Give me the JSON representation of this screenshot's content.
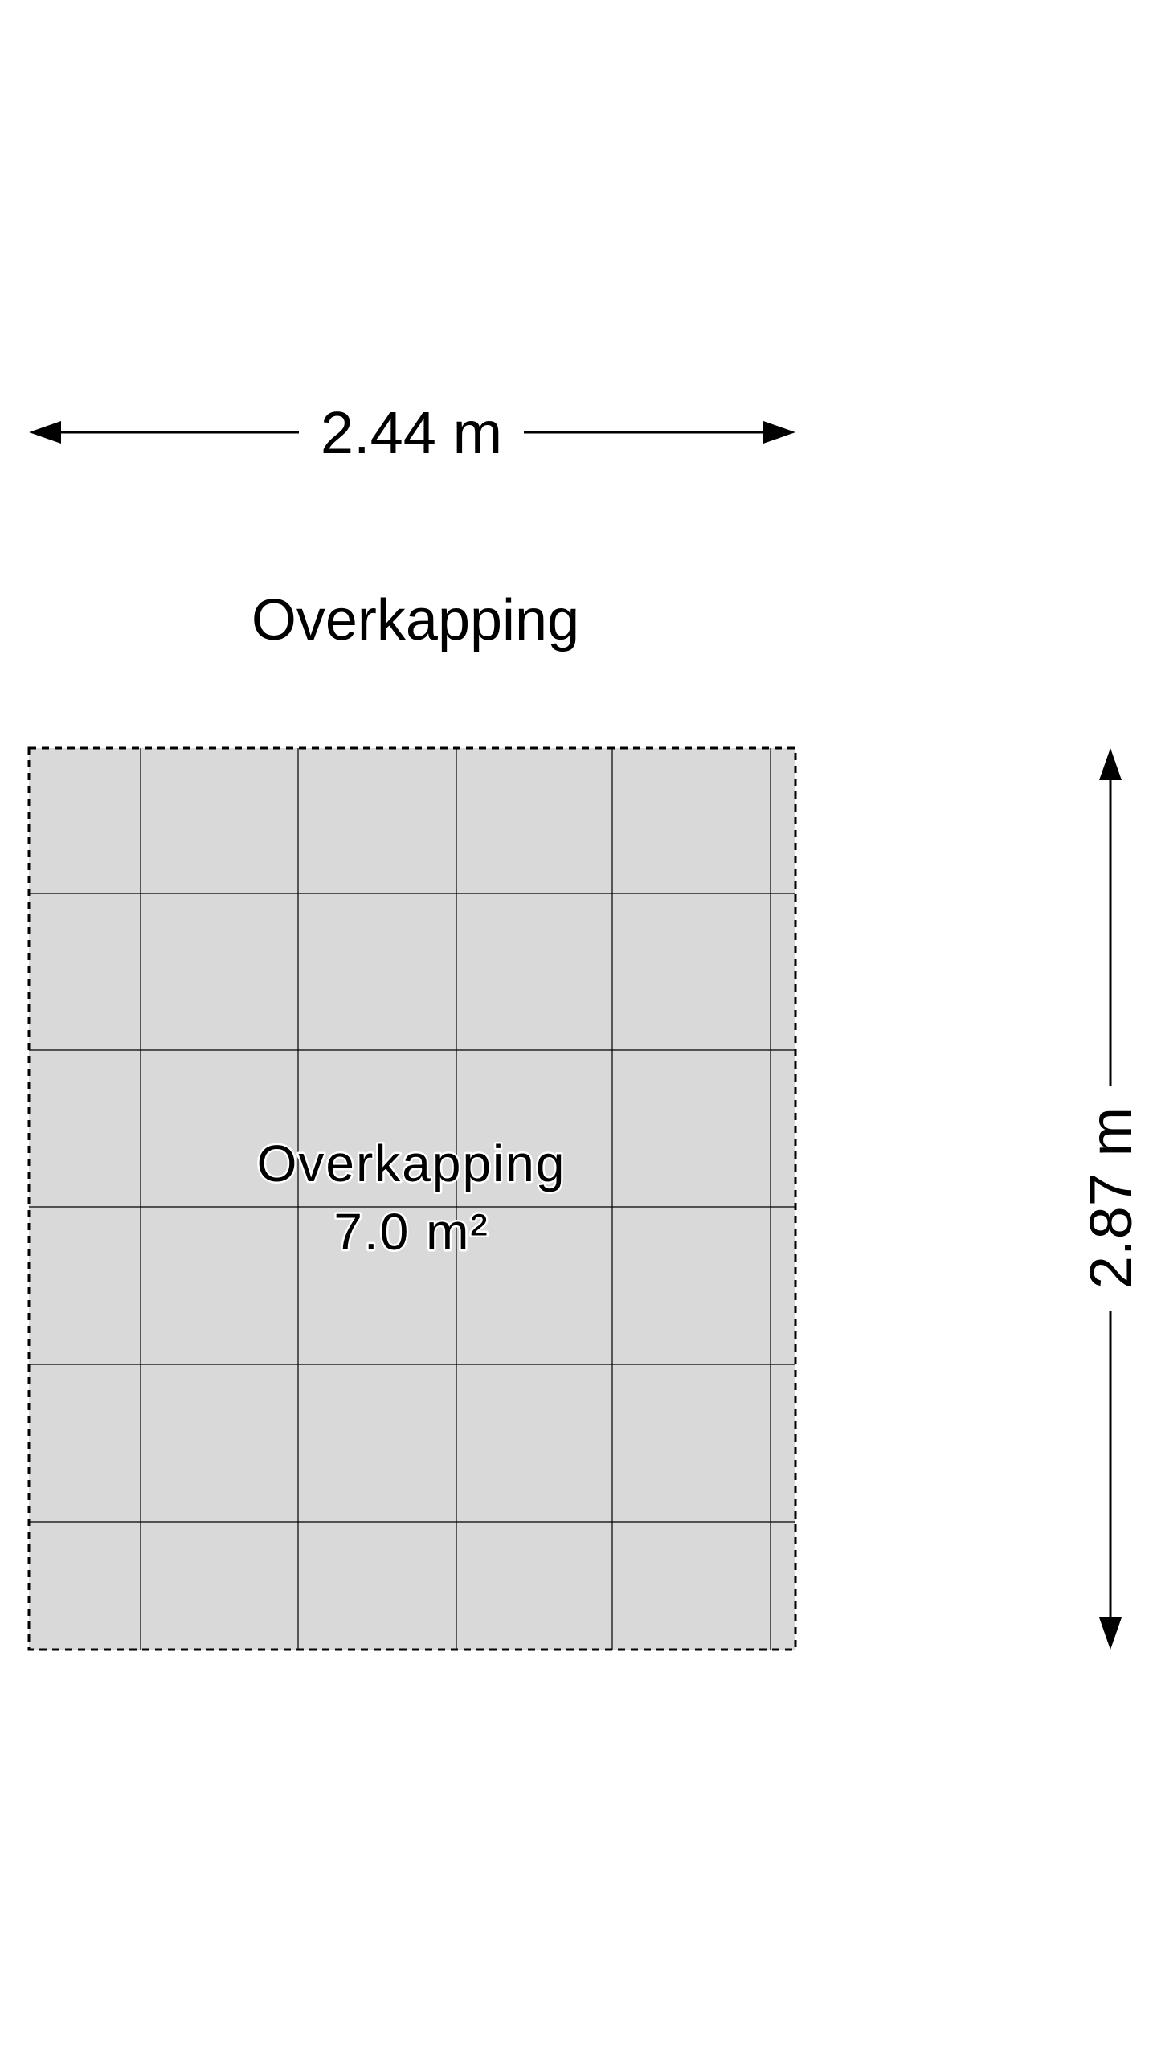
{
  "floorplan": {
    "width_dimension": "2.44 m",
    "height_dimension": "2.87 m",
    "room_title": "Overkapping",
    "room": {
      "name": "Overkapping",
      "area": "7.0 m²"
    },
    "colors": {
      "room_fill": "#d9d9d9",
      "lines": "#000000",
      "background": "#ffffff"
    }
  }
}
